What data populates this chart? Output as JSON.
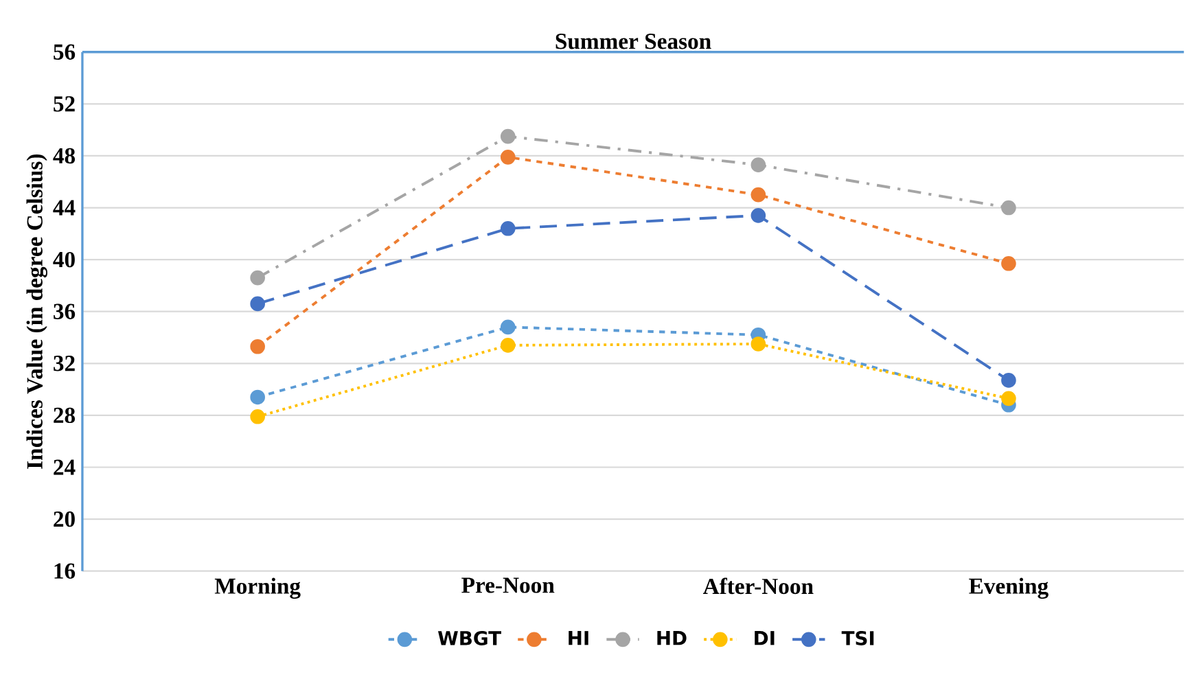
{
  "chart_data": {
    "type": "line",
    "title": "Summer Season",
    "ylabel": "Indices Value (in degree Celsius)",
    "categories": [
      "Morning",
      "Pre-Noon",
      "After-Noon",
      "Evening"
    ],
    "series": [
      {
        "name": "WBGT",
        "color": "#5b9bd5",
        "line_style": "dashed",
        "values": [
          29.4,
          34.8,
          34.2,
          28.8
        ]
      },
      {
        "name": "HI",
        "color": "#ed7d31",
        "line_style": "dashed",
        "values": [
          33.3,
          47.9,
          45.0,
          39.7
        ]
      },
      {
        "name": "HD",
        "color": "#a5a5a5",
        "line_style": "dashdot",
        "values": [
          38.6,
          49.5,
          47.3,
          44.0
        ]
      },
      {
        "name": "DI",
        "color": "#ffc000",
        "line_style": "dotted",
        "values": [
          27.9,
          33.4,
          33.5,
          29.3
        ]
      },
      {
        "name": "TSI",
        "color": "#4472c4",
        "line_style": "longdashed",
        "values": [
          36.6,
          42.4,
          43.4,
          30.7
        ]
      }
    ],
    "ylim": [
      16,
      56
    ],
    "yticks": [
      16,
      20,
      24,
      28,
      32,
      36,
      40,
      44,
      48,
      52,
      56
    ],
    "grid": "y",
    "legend": "bottom",
    "marker": "circle"
  }
}
